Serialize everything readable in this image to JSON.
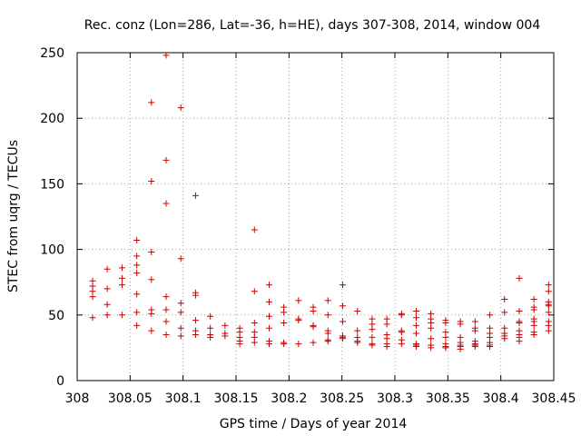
{
  "chart_data": {
    "type": "scatter",
    "title": "Rec. conz (Lon=286, Lat=-36, h=HE), days 307-308, 2014, window 004",
    "xlabel": "GPS time / Days of year 2014",
    "ylabel": "STEC from uqrg / TECUs",
    "xlim": [
      308,
      308.45
    ],
    "ylim": [
      0,
      250
    ],
    "x_ticks": [
      308,
      308.05,
      308.1,
      308.15,
      308.2,
      308.25,
      308.3,
      308.35,
      308.4,
      308.45
    ],
    "x_tick_labels": [
      "308",
      "308.05",
      "308.1",
      "308.15",
      "308.2",
      "308.25",
      "308.3",
      "308.35",
      "308.4",
      "308.45"
    ],
    "y_ticks": [
      0,
      50,
      100,
      150,
      200,
      250
    ],
    "y_tick_labels": [
      "0",
      "50",
      "100",
      "150",
      "200",
      "250"
    ],
    "grid": true,
    "marker": "+",
    "color": "#cc0000",
    "series": [
      {
        "name": "STEC",
        "points": [
          [
            308.0146,
            76
          ],
          [
            308.0146,
            72
          ],
          [
            308.0146,
            68
          ],
          [
            308.0146,
            64
          ],
          [
            308.0146,
            48
          ],
          [
            308.0284,
            85
          ],
          [
            308.0284,
            70
          ],
          [
            308.0284,
            58
          ],
          [
            308.0284,
            50
          ],
          [
            308.0424,
            86
          ],
          [
            308.0424,
            78
          ],
          [
            308.0424,
            73
          ],
          [
            308.0424,
            50
          ],
          [
            308.0563,
            107
          ],
          [
            308.0563,
            95
          ],
          [
            308.0563,
            88
          ],
          [
            308.0563,
            82
          ],
          [
            308.0563,
            66
          ],
          [
            308.0563,
            52
          ],
          [
            308.0563,
            42
          ],
          [
            308.0701,
            212
          ],
          [
            308.0701,
            152
          ],
          [
            308.0701,
            98
          ],
          [
            308.0701,
            77
          ],
          [
            308.0701,
            54
          ],
          [
            308.0701,
            51
          ],
          [
            308.0701,
            38
          ],
          [
            308.084,
            248
          ],
          [
            308.084,
            168
          ],
          [
            308.084,
            135
          ],
          [
            308.084,
            64
          ],
          [
            308.084,
            54
          ],
          [
            308.084,
            45
          ],
          [
            308.084,
            35
          ],
          [
            308.0979,
            208
          ],
          [
            308.0979,
            93
          ],
          [
            308.0979,
            59
          ],
          [
            308.0979,
            52
          ],
          [
            308.0979,
            40
          ],
          [
            308.0979,
            34
          ],
          [
            308.1118,
            141
          ],
          [
            308.1118,
            67
          ],
          [
            308.1118,
            65
          ],
          [
            308.1118,
            46
          ],
          [
            308.1118,
            38
          ],
          [
            308.1118,
            35
          ],
          [
            308.1257,
            49
          ],
          [
            308.1257,
            40
          ],
          [
            308.1257,
            35
          ],
          [
            308.1257,
            33
          ],
          [
            308.1396,
            42
          ],
          [
            308.1396,
            36
          ],
          [
            308.1396,
            34
          ],
          [
            308.1535,
            40
          ],
          [
            308.1535,
            37
          ],
          [
            308.1535,
            33
          ],
          [
            308.1535,
            30
          ],
          [
            308.1535,
            28
          ],
          [
            308.1674,
            115
          ],
          [
            308.1674,
            68
          ],
          [
            308.1674,
            44
          ],
          [
            308.1674,
            37
          ],
          [
            308.1674,
            33
          ],
          [
            308.1674,
            29
          ],
          [
            308.1813,
            73
          ],
          [
            308.1813,
            60
          ],
          [
            308.1813,
            49
          ],
          [
            308.1813,
            40
          ],
          [
            308.1813,
            30
          ],
          [
            308.1813,
            28
          ],
          [
            308.1951,
            56
          ],
          [
            308.1951,
            52
          ],
          [
            308.1951,
            44
          ],
          [
            308.1951,
            29
          ],
          [
            308.1951,
            28
          ],
          [
            308.209,
            61
          ],
          [
            308.209,
            47
          ],
          [
            308.209,
            46
          ],
          [
            308.209,
            28
          ],
          [
            308.2229,
            56
          ],
          [
            308.2229,
            53
          ],
          [
            308.2229,
            42
          ],
          [
            308.2229,
            41
          ],
          [
            308.2229,
            29
          ],
          [
            308.2368,
            61
          ],
          [
            308.2368,
            50
          ],
          [
            308.2368,
            38
          ],
          [
            308.2368,
            36
          ],
          [
            308.2368,
            31
          ],
          [
            308.2368,
            30
          ],
          [
            308.2507,
            73
          ],
          [
            308.2507,
            57
          ],
          [
            308.2507,
            45
          ],
          [
            308.2507,
            34
          ],
          [
            308.2507,
            33
          ],
          [
            308.2507,
            32
          ],
          [
            308.2646,
            53
          ],
          [
            308.2646,
            38
          ],
          [
            308.2646,
            33
          ],
          [
            308.2646,
            30
          ],
          [
            308.2646,
            29
          ],
          [
            308.2785,
            47
          ],
          [
            308.2785,
            43
          ],
          [
            308.2785,
            39
          ],
          [
            308.2785,
            33
          ],
          [
            308.2785,
            28
          ],
          [
            308.2785,
            27
          ],
          [
            308.2924,
            47
          ],
          [
            308.2924,
            43
          ],
          [
            308.2924,
            35
          ],
          [
            308.2924,
            32
          ],
          [
            308.2924,
            28
          ],
          [
            308.2924,
            26
          ],
          [
            308.3063,
            51
          ],
          [
            308.3063,
            50
          ],
          [
            308.3063,
            38
          ],
          [
            308.3063,
            37
          ],
          [
            308.3063,
            31
          ],
          [
            308.3063,
            28
          ],
          [
            308.3201,
            53
          ],
          [
            308.3201,
            48
          ],
          [
            308.3201,
            42
          ],
          [
            308.3201,
            36
          ],
          [
            308.3201,
            28
          ],
          [
            308.3201,
            27
          ],
          [
            308.3201,
            26
          ],
          [
            308.334,
            51
          ],
          [
            308.334,
            47
          ],
          [
            308.334,
            44
          ],
          [
            308.334,
            40
          ],
          [
            308.334,
            32
          ],
          [
            308.334,
            27
          ],
          [
            308.334,
            25
          ],
          [
            308.3479,
            46
          ],
          [
            308.3479,
            44
          ],
          [
            308.3479,
            37
          ],
          [
            308.3479,
            33
          ],
          [
            308.3479,
            28
          ],
          [
            308.3479,
            26
          ],
          [
            308.3479,
            25
          ],
          [
            308.3618,
            45
          ],
          [
            308.3618,
            43
          ],
          [
            308.3618,
            33
          ],
          [
            308.3618,
            29
          ],
          [
            308.3618,
            27
          ],
          [
            308.3618,
            26
          ],
          [
            308.3618,
            24
          ],
          [
            308.3757,
            45
          ],
          [
            308.3757,
            40
          ],
          [
            308.3757,
            38
          ],
          [
            308.3757,
            30
          ],
          [
            308.3757,
            28
          ],
          [
            308.3757,
            27
          ],
          [
            308.3757,
            26
          ],
          [
            308.3896,
            50
          ],
          [
            308.3896,
            40
          ],
          [
            308.3896,
            36
          ],
          [
            308.3896,
            33
          ],
          [
            308.3896,
            29
          ],
          [
            308.3896,
            27
          ],
          [
            308.3896,
            26
          ],
          [
            308.4035,
            62
          ],
          [
            308.4035,
            52
          ],
          [
            308.4035,
            40
          ],
          [
            308.4035,
            36
          ],
          [
            308.4035,
            34
          ],
          [
            308.4035,
            32
          ],
          [
            308.4174,
            78
          ],
          [
            308.4174,
            53
          ],
          [
            308.4174,
            45
          ],
          [
            308.4174,
            44
          ],
          [
            308.4174,
            38
          ],
          [
            308.4174,
            35
          ],
          [
            308.4174,
            33
          ],
          [
            308.4174,
            30
          ],
          [
            308.4313,
            62
          ],
          [
            308.4313,
            56
          ],
          [
            308.4313,
            54
          ],
          [
            308.4313,
            47
          ],
          [
            308.4313,
            45
          ],
          [
            308.4313,
            42
          ],
          [
            308.4313,
            37
          ],
          [
            308.4313,
            35
          ],
          [
            308.4451,
            73
          ],
          [
            308.4451,
            68
          ],
          [
            308.4451,
            60
          ],
          [
            308.4451,
            58
          ],
          [
            308.4451,
            57
          ],
          [
            308.4451,
            52
          ],
          [
            308.4451,
            45
          ],
          [
            308.4451,
            42
          ],
          [
            308.4451,
            38
          ]
        ]
      }
    ]
  }
}
